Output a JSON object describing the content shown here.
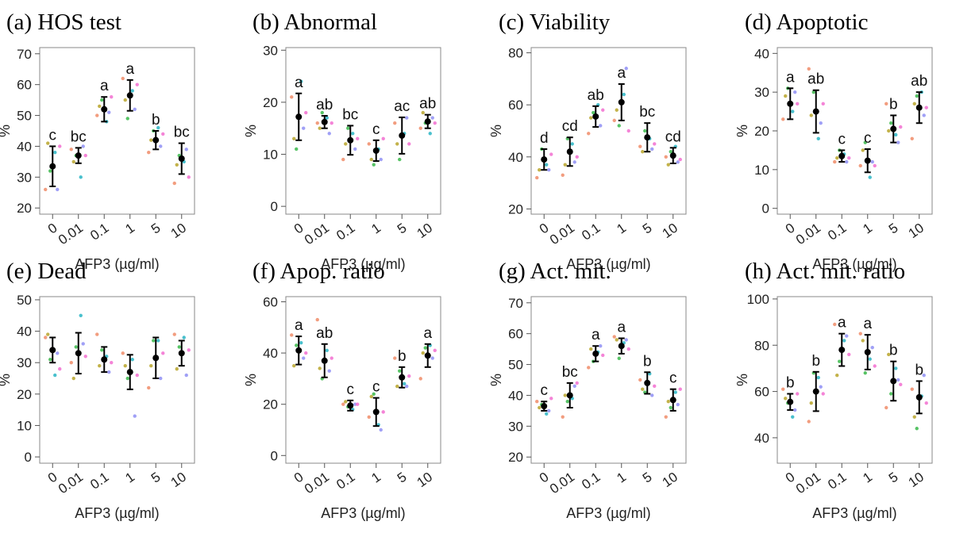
{
  "chart_data": [
    {
      "type": "scatter",
      "title": "(a) HOS test",
      "ylabel": "%",
      "xlabel": "AFP3 (µg/ml)",
      "categories": [
        "0",
        "0.01",
        "0.1",
        "1",
        "5",
        "10"
      ],
      "ylim": [
        18,
        72
      ],
      "yticks": [
        20,
        30,
        40,
        50,
        60,
        70
      ],
      "means": [
        33.5,
        37,
        52,
        56.5,
        42,
        36
      ],
      "errors": [
        6.5,
        2.5,
        4,
        5,
        3,
        5
      ],
      "letters": [
        "c",
        "bc",
        "a",
        "a",
        "b",
        "bc"
      ],
      "points": [
        [
          26,
          41,
          32,
          38,
          26,
          40
        ],
        [
          39,
          35,
          37,
          30,
          40,
          37
        ],
        [
          50,
          53,
          55,
          48,
          51,
          56
        ],
        [
          62,
          55,
          49,
          58,
          52,
          60
        ],
        [
          38,
          42,
          45,
          46,
          40,
          44
        ],
        [
          28,
          34,
          37,
          35,
          39,
          30
        ]
      ]
    },
    {
      "type": "scatter",
      "title": "(b) Abnormal",
      "ylabel": "%",
      "xlabel": "AFP3 (µg/ml)",
      "categories": [
        "0",
        "0.01",
        "0.1",
        "1",
        "5",
        "10"
      ],
      "ylim": [
        -1.5,
        30.5
      ],
      "yticks": [
        0,
        10,
        20,
        30
      ],
      "means": [
        17.2,
        16.2,
        12.7,
        10.7,
        13.6,
        16.3
      ],
      "errors": [
        4.5,
        1.2,
        2.8,
        2,
        3.5,
        1.3
      ],
      "letters": [
        "a",
        "ab",
        "bc",
        "c",
        "ac",
        "ab"
      ],
      "points": [
        [
          21,
          13,
          11,
          24,
          15,
          18
        ],
        [
          16,
          15,
          18,
          17,
          14,
          16
        ],
        [
          9,
          12,
          15,
          14,
          11,
          13
        ],
        [
          12,
          9,
          8,
          11,
          9,
          13
        ],
        [
          16,
          12,
          9,
          14,
          17,
          12
        ],
        [
          15,
          18,
          16,
          14,
          17,
          16
        ]
      ]
    },
    {
      "type": "scatter",
      "title": "(c) Viability",
      "ylabel": "%",
      "xlabel": "AFP3 (µg/ml)",
      "categories": [
        "0",
        "0.01",
        "0.1",
        "1",
        "5",
        "10"
      ],
      "ylim": [
        18,
        82
      ],
      "yticks": [
        20,
        40,
        60,
        80
      ],
      "means": [
        39,
        42,
        55.5,
        61,
        47.5,
        40.5
      ],
      "errors": [
        4,
        5.5,
        4,
        7,
        5.5,
        3
      ],
      "letters": [
        "d",
        "cd",
        "ab",
        "a",
        "bc",
        "cd"
      ],
      "points": [
        [
          32,
          35,
          43,
          37,
          35,
          41
        ],
        [
          33,
          37,
          47,
          45,
          38,
          40
        ],
        [
          49,
          55,
          57,
          60,
          52,
          58
        ],
        [
          54,
          58,
          52,
          64,
          74,
          50
        ],
        [
          44,
          42,
          50,
          47,
          43,
          45
        ],
        [
          40,
          37,
          42,
          44,
          38,
          39
        ]
      ]
    },
    {
      "type": "scatter",
      "title": "(d) Apoptotic",
      "ylabel": "%",
      "xlabel": "AFP3 (µg/ml)",
      "categories": [
        "0",
        "0.01",
        "0.1",
        "1",
        "5",
        "10"
      ],
      "ylim": [
        -1.5,
        41.5
      ],
      "yticks": [
        0,
        10,
        20,
        30,
        40
      ],
      "means": [
        27,
        25,
        13.5,
        12.3,
        20.5,
        26
      ],
      "errors": [
        4,
        5.5,
        1.5,
        3,
        3.5,
        4
      ],
      "letters": [
        "a",
        "ab",
        "c",
        "c",
        "b",
        "ab"
      ],
      "points": [
        [
          23,
          29,
          31,
          25,
          30,
          27
        ],
        [
          36,
          24,
          30,
          18,
          22,
          27
        ],
        [
          12,
          13,
          15,
          14,
          12,
          13
        ],
        [
          11,
          15,
          17,
          8,
          12,
          11
        ],
        [
          27,
          20,
          22,
          19,
          17,
          21
        ],
        [
          18,
          27,
          29,
          30,
          24,
          26
        ]
      ]
    },
    {
      "type": "scatter",
      "title": "(e) Dead",
      "ylabel": "%",
      "xlabel": "AFP3 (µg/ml)",
      "categories": [
        "0",
        "0.01",
        "0.1",
        "1",
        "5",
        "10"
      ],
      "ylim": [
        -2,
        51
      ],
      "yticks": [
        0,
        10,
        20,
        30,
        40,
        50
      ],
      "means": [
        34,
        33,
        31,
        27,
        31.5,
        33
      ],
      "errors": [
        4,
        6.5,
        4,
        5.5,
        6.5,
        4
      ],
      "letters": [
        "",
        "",
        "",
        "",
        "",
        ""
      ],
      "points": [
        [
          38,
          39,
          31,
          26,
          33,
          28
        ],
        [
          30,
          25,
          35,
          45,
          36,
          32
        ],
        [
          39,
          29,
          34,
          32,
          27,
          30
        ],
        [
          33,
          29,
          25,
          31,
          13,
          26
        ],
        [
          22,
          29,
          37,
          37,
          25,
          33
        ],
        [
          39,
          28,
          35,
          38,
          26,
          34
        ]
      ]
    },
    {
      "type": "scatter",
      "title": "(f) Apop. ratio",
      "ylabel": "%",
      "xlabel": "AFP3 (µg/ml)",
      "categories": [
        "0",
        "0.01",
        "0.1",
        "1",
        "5",
        "10"
      ],
      "ylim": [
        -3,
        62
      ],
      "yticks": [
        0,
        20,
        40,
        60
      ],
      "means": [
        41,
        37,
        19.5,
        17,
        30.5,
        39
      ],
      "errors": [
        5.5,
        6.5,
        2,
        5.5,
        4,
        4.5
      ],
      "letters": [
        "a",
        "ab",
        "c",
        "c",
        "b",
        "a"
      ],
      "points": [
        [
          47,
          35,
          43,
          44,
          38,
          40
        ],
        [
          53,
          34,
          30,
          41,
          33,
          38
        ],
        [
          20,
          21,
          19,
          18,
          20,
          20
        ],
        [
          15,
          23,
          24,
          12,
          10,
          17
        ],
        [
          38,
          27,
          33,
          28,
          27,
          31
        ],
        [
          30,
          40,
          42,
          43,
          38,
          41
        ]
      ]
    },
    {
      "type": "scatter",
      "title": "(g) Act. mit.",
      "ylabel": "%",
      "xlabel": "AFP3 (µg/ml)",
      "categories": [
        "0",
        "0.01",
        "0.1",
        "1",
        "5",
        "10"
      ],
      "ylim": [
        18,
        72
      ],
      "yticks": [
        20,
        30,
        40,
        50,
        60,
        70
      ],
      "means": [
        36.5,
        40,
        53.5,
        56,
        44,
        38.5
      ],
      "errors": [
        1.5,
        4,
        2.5,
        2.5,
        3.5,
        3.5
      ],
      "letters": [
        "c",
        "bc",
        "a",
        "a",
        "b",
        "c"
      ],
      "points": [
        [
          38,
          36,
          37,
          34,
          35,
          39
        ],
        [
          33,
          40,
          38,
          39,
          43,
          44
        ],
        [
          49,
          55,
          51,
          54,
          56,
          53
        ],
        [
          59,
          58,
          52,
          57,
          58,
          55
        ],
        [
          45,
          42,
          41,
          47,
          40,
          43
        ],
        [
          33,
          38,
          36,
          41,
          37,
          42
        ]
      ]
    },
    {
      "type": "scatter",
      "title": "(h) Act. mit. ratio",
      "ylabel": "%",
      "xlabel": "AFP3 (µg/ml)",
      "categories": [
        "0",
        "0.01",
        "0.1",
        "1",
        "5",
        "10"
      ],
      "ylim": [
        29,
        101
      ],
      "yticks": [
        40,
        60,
        80,
        100
      ],
      "means": [
        55.5,
        60,
        78,
        77,
        64.5,
        57.5
      ],
      "errors": [
        3.5,
        8.5,
        7,
        7.5,
        8.5,
        7
      ],
      "letters": [
        "b",
        "b",
        "a",
        "a",
        "b",
        "b"
      ],
      "points": [
        [
          61,
          57,
          55,
          49,
          52,
          59
        ],
        [
          47,
          55,
          68,
          66,
          62,
          59
        ],
        [
          89,
          67,
          73,
          82,
          84,
          76
        ],
        [
          85,
          82,
          68,
          74,
          79,
          71
        ],
        [
          53,
          76,
          59,
          70,
          65,
          63
        ],
        [
          61,
          49,
          44,
          58,
          67,
          55
        ]
      ]
    }
  ],
  "replicate_colors": [
    "#f08c68",
    "#b8a52a",
    "#39b84a",
    "#29b5c4",
    "#8f8ff5",
    "#f26fd0"
  ],
  "mean_color": "#000000"
}
